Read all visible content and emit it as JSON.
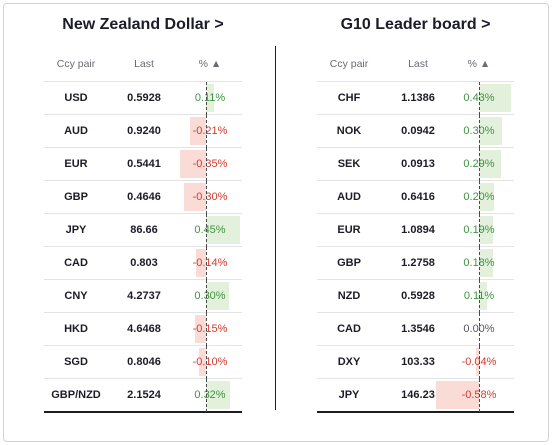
{
  "panels": [
    {
      "title": "New Zealand Dollar >",
      "headers": {
        "pair": "Ccy pair",
        "last": "Last",
        "pct": "% ▲"
      },
      "zero_at": 162,
      "scale": 75,
      "rows": [
        {
          "pair": "USD",
          "last": "0.5928",
          "pct": "0.11%",
          "value": 0.11
        },
        {
          "pair": "AUD",
          "last": "0.9240",
          "pct": "-0.21%",
          "value": -0.21
        },
        {
          "pair": "EUR",
          "last": "0.5441",
          "pct": "-0.35%",
          "value": -0.35
        },
        {
          "pair": "GBP",
          "last": "0.4646",
          "pct": "-0.30%",
          "value": -0.3
        },
        {
          "pair": "JPY",
          "last": "86.66",
          "pct": "0.45%",
          "value": 0.45
        },
        {
          "pair": "CAD",
          "last": "0.803",
          "pct": "-0.14%",
          "value": -0.14
        },
        {
          "pair": "CNY",
          "last": "4.2737",
          "pct": "0.30%",
          "value": 0.3
        },
        {
          "pair": "HKD",
          "last": "4.6468",
          "pct": "-0.15%",
          "value": -0.15
        },
        {
          "pair": "SGD",
          "last": "0.8046",
          "pct": "-0.10%",
          "value": -0.1
        },
        {
          "pair": "GBP/NZD",
          "last": "2.1524",
          "pct": "0.32%",
          "value": 0.32
        }
      ]
    },
    {
      "title": "G10 Leader board >",
      "headers": {
        "pair": "Ccy pair",
        "last": "Last",
        "pct": "% ▲"
      },
      "zero_at": 163,
      "scale": 75,
      "rows": [
        {
          "pair": "CHF",
          "last": "1.1386",
          "pct": "0.43%",
          "value": 0.43
        },
        {
          "pair": "NOK",
          "last": "0.0942",
          "pct": "0.30%",
          "value": 0.3
        },
        {
          "pair": "SEK",
          "last": "0.0913",
          "pct": "0.29%",
          "value": 0.29
        },
        {
          "pair": "AUD",
          "last": "0.6416",
          "pct": "0.20%",
          "value": 0.2
        },
        {
          "pair": "EUR",
          "last": "1.0894",
          "pct": "0.19%",
          "value": 0.19
        },
        {
          "pair": "GBP",
          "last": "1.2758",
          "pct": "0.18%",
          "value": 0.18
        },
        {
          "pair": "NZD",
          "last": "0.5928",
          "pct": "0.11%",
          "value": 0.11
        },
        {
          "pair": "CAD",
          "last": "1.3546",
          "pct": "0.00%",
          "value": 0.0
        },
        {
          "pair": "DXY",
          "last": "103.33",
          "pct": "-0.04%",
          "value": -0.04
        },
        {
          "pair": "JPY",
          "last": "146.23",
          "pct": "-0.58%",
          "value": -0.58
        }
      ]
    }
  ],
  "colors": {
    "positive_text": "#3f9440",
    "negative_text": "#d23b2f",
    "positive_bar": "#e2f0dc",
    "negative_bar": "#fadbd5"
  }
}
